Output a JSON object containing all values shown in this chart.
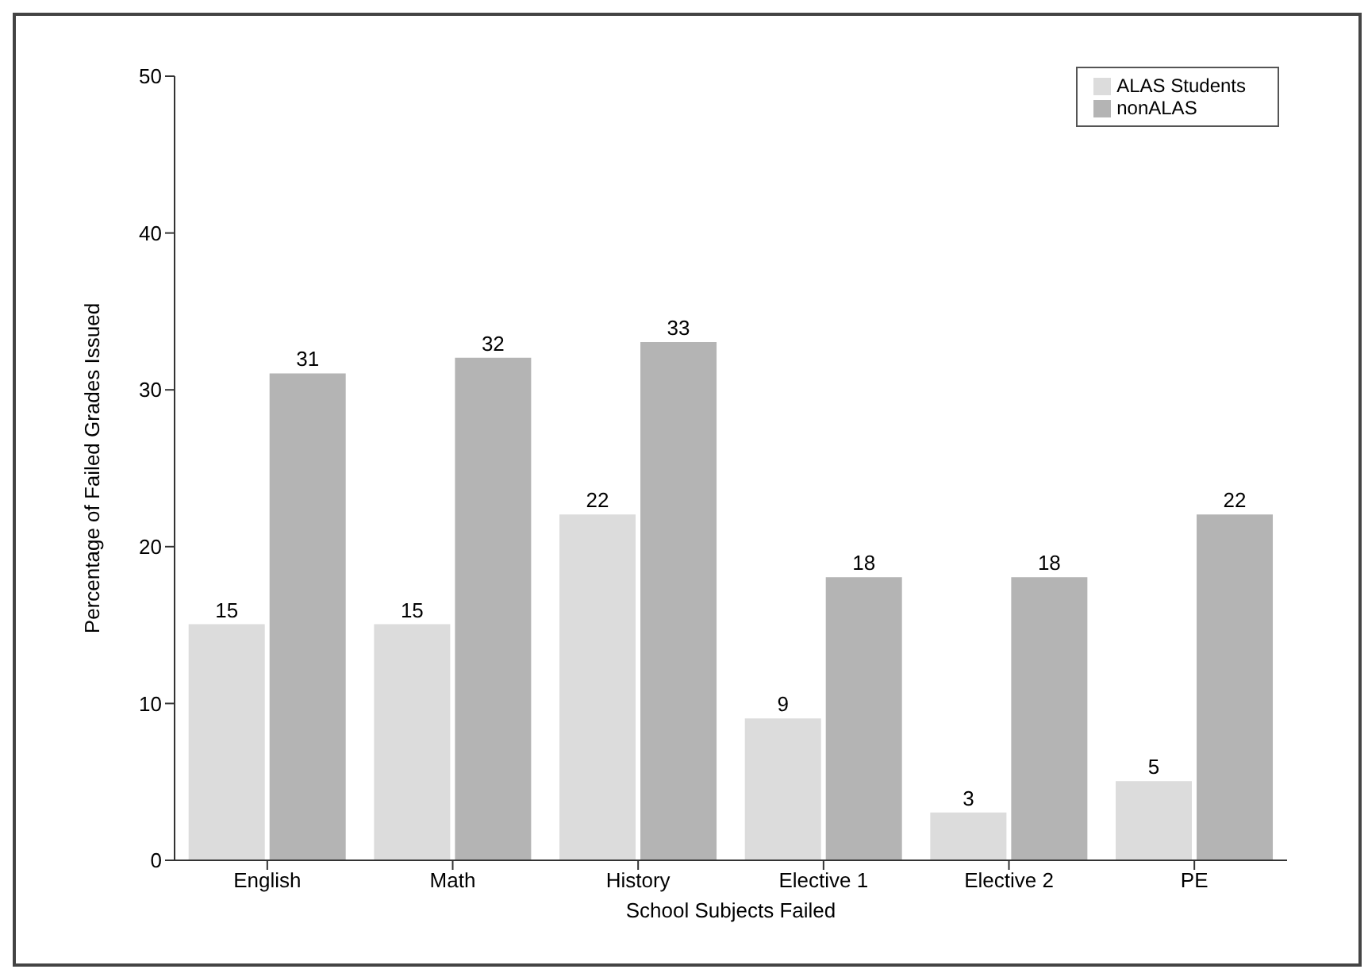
{
  "chart_data": {
    "type": "bar",
    "xlabel": "School Subjects Failed",
    "ylabel": "Percentage of Failed Grades Issued",
    "categories": [
      "English",
      "Math",
      "History",
      "Elective 1",
      "Elective 2",
      "PE"
    ],
    "series": [
      {
        "name": "ALAS Students",
        "color": "#dcdcdc",
        "values": [
          15,
          15,
          22,
          9,
          3,
          5
        ]
      },
      {
        "name": "nonALAS",
        "color": "#b4b4b4",
        "values": [
          31,
          32,
          33,
          18,
          18,
          22
        ]
      }
    ],
    "ylim": [
      0,
      50
    ],
    "yticks": [
      0,
      10,
      20,
      30,
      40,
      50
    ],
    "grid": false,
    "legend": "top right",
    "data_labels": true
  }
}
